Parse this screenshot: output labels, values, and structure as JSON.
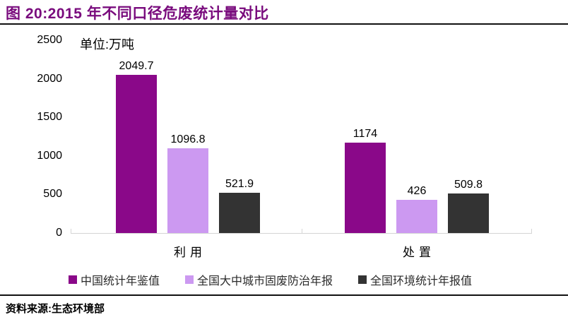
{
  "page": {
    "title": "图 20:2015 年不同口径危废统计量对比",
    "source_label": "资料来源:生态环境部",
    "accent_color": "#790b7d"
  },
  "chart_data": {
    "type": "bar",
    "title": "图 20:2015 年不同口径危废统计量对比",
    "unit_label": "单位:万吨",
    "categories": [
      "利用",
      "处置"
    ],
    "series": [
      {
        "name": "中国统计年鉴值",
        "color": "#8a0889",
        "values": [
          2049.7,
          1174
        ]
      },
      {
        "name": "全国大中城市固废防治年报",
        "color": "#cc99f1",
        "values": [
          1096.8,
          426
        ]
      },
      {
        "name": "全国环境统计年报值",
        "color": "#333333",
        "values": [
          521.9,
          509.8
        ]
      }
    ],
    "ylim": [
      0,
      2500
    ],
    "yticks": [
      0,
      500,
      1000,
      1500,
      2000,
      2500
    ],
    "xlabel": "",
    "ylabel": "",
    "grid": false,
    "legend_position": "bottom",
    "axis_line_color": "#d5d5d5"
  }
}
